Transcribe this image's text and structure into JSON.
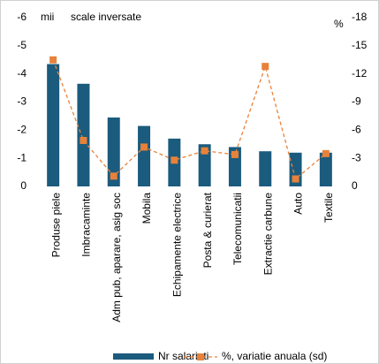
{
  "chart_data": {
    "type": "bar_line",
    "annotations": [
      "mii",
      "scale inversate",
      "%"
    ],
    "categories": [
      "Produse piele",
      "Imbracaminte",
      "Adm pub, aparare, asig soc",
      "Mobila",
      "Echipamente electrice",
      "Posta & curierat",
      "Telecomunicatii",
      "Extractie carbune",
      "Auto",
      "Textile"
    ],
    "series": [
      {
        "name": "Nr salariati",
        "type": "bar",
        "color": "#1b5b7d",
        "values": [
          -4.35,
          -3.65,
          -2.45,
          -2.15,
          -1.7,
          -1.5,
          -1.4,
          -1.25,
          -1.2,
          -1.2
        ]
      },
      {
        "name": "%, variatie anuala (sd)",
        "type": "line",
        "axis": "y2",
        "color": "#e8823a",
        "values": [
          -13.5,
          -4.9,
          -1.1,
          -4.2,
          -2.8,
          -3.8,
          -3.4,
          -12.8,
          -0.8,
          -3.5
        ]
      }
    ],
    "ylim": [
      0,
      -6
    ],
    "yticks": [
      0,
      -1,
      -2,
      -3,
      -4,
      -5,
      -6
    ],
    "y2lim": [
      0,
      -18
    ],
    "y2ticks": [
      0,
      -3,
      -6,
      -9,
      -12,
      -15,
      -18
    ],
    "legend": "bottom"
  }
}
